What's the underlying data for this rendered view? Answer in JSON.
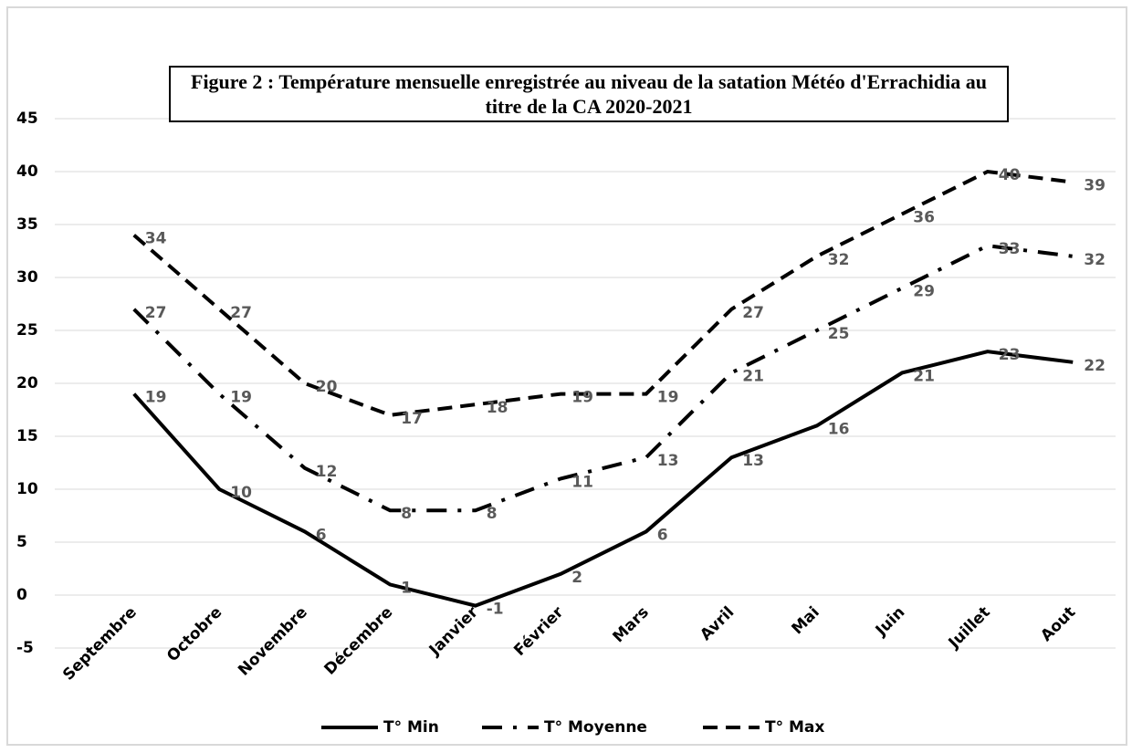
{
  "chart_data": {
    "type": "line",
    "title": "Figure 2 : Température mensuelle enregistrée au niveau de la satation Météo d'Errachidia au titre de la CA 2020-2021",
    "categories": [
      "Septembre",
      "Octobre",
      "Novembre",
      "Décembre",
      "Janvier",
      "Février",
      "Mars",
      "Avril",
      "Mai",
      "Juin",
      "Juillet",
      "Aout"
    ],
    "series": [
      {
        "name": "T° Min",
        "color": "#000000",
        "linestyle": "solid",
        "values": [
          19,
          10,
          6,
          1,
          -1,
          2,
          6,
          13,
          16,
          21,
          23,
          22
        ]
      },
      {
        "name": "T° Moyenne",
        "color": "#000000",
        "linestyle": "dashdot",
        "values": [
          27,
          19,
          12,
          8,
          8,
          11,
          13,
          21,
          25,
          29,
          33,
          32
        ]
      },
      {
        "name": "T° Max",
        "color": "#000000",
        "linestyle": "dashed",
        "values": [
          34,
          27,
          20,
          17,
          18,
          19,
          19,
          27,
          32,
          36,
          40,
          39
        ]
      }
    ],
    "ylim": [
      -5,
      45
    ],
    "yticks": [
      -5,
      0,
      5,
      10,
      15,
      20,
      25,
      30,
      35,
      40,
      45
    ],
    "grid": true,
    "legend": "bottom"
  }
}
